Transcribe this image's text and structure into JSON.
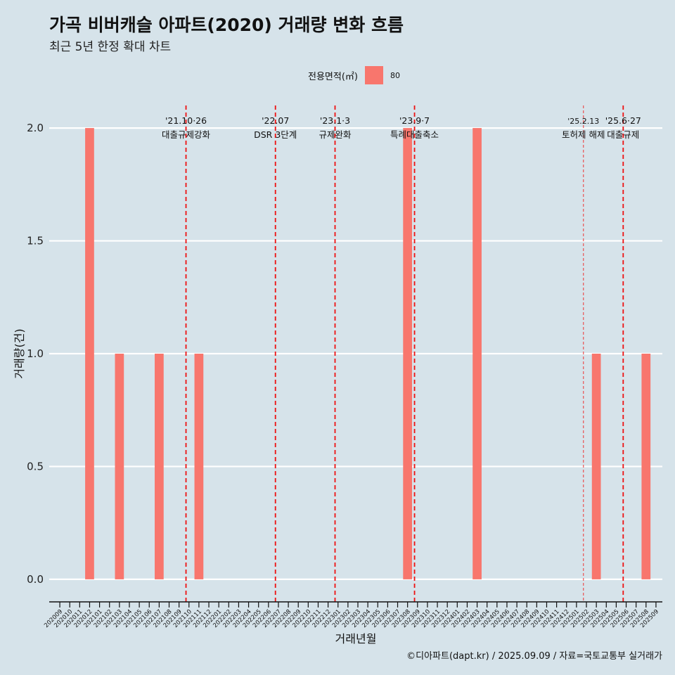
{
  "header": {
    "title": "가곡 비버캐슬 아파트(2020) 거래량 변화 흐름",
    "subtitle": "최근 5년 한정 확대 차트"
  },
  "legend": {
    "title": "전용면적(㎡)",
    "items": [
      {
        "label": "80",
        "color": "#f8766d"
      }
    ]
  },
  "caption": "©디아파트(dapt.kr) / 2025.09.09 / 자료=국토교통부 실거래가",
  "chart_data": {
    "type": "bar",
    "xlabel": "거래년월",
    "ylabel": "거래량(건)",
    "ylim": [
      -0.1,
      2.1
    ],
    "yticks": [
      0.0,
      0.5,
      1.0,
      1.5,
      2.0
    ],
    "ytick_labels": [
      "0.0",
      "0.5",
      "1.0",
      "1.5",
      "2.0"
    ],
    "categories": [
      "202009",
      "202010",
      "202011",
      "202012",
      "202101",
      "202102",
      "202103",
      "202104",
      "202105",
      "202106",
      "202107",
      "202108",
      "202109",
      "202110",
      "202111",
      "202112",
      "202201",
      "202202",
      "202203",
      "202204",
      "202205",
      "202206",
      "202207",
      "202208",
      "202209",
      "202210",
      "202211",
      "202212",
      "202301",
      "202302",
      "202303",
      "202304",
      "202305",
      "202306",
      "202307",
      "202308",
      "202309",
      "202310",
      "202311",
      "202312",
      "202401",
      "202402",
      "202403",
      "202404",
      "202405",
      "202406",
      "202407",
      "202408",
      "202409",
      "202410",
      "202411",
      "202412",
      "202501",
      "202502",
      "202503",
      "202504",
      "202505",
      "202506",
      "202507",
      "202508",
      "202509"
    ],
    "series": [
      {
        "name": "80",
        "color": "#f8766d",
        "values": [
          0,
          0,
          0,
          2,
          0,
          0,
          1,
          0,
          0,
          0,
          1,
          0,
          0,
          0,
          1,
          0,
          0,
          0,
          0,
          0,
          0,
          0,
          0,
          0,
          0,
          0,
          0,
          0,
          0,
          0,
          0,
          0,
          0,
          0,
          0,
          2,
          0,
          0,
          0,
          0,
          0,
          0,
          2,
          0,
          0,
          0,
          0,
          0,
          0,
          0,
          0,
          0,
          0,
          0,
          1,
          0,
          0,
          0,
          0,
          1,
          0
        ]
      }
    ],
    "annotations": [
      {
        "position": 13.2,
        "date": "'21.10·26",
        "label": "대출규제강화",
        "style": "bold"
      },
      {
        "position": 22.2,
        "date": "'22.07",
        "label": "DSR 3단계",
        "style": "bold"
      },
      {
        "position": 28.2,
        "date": "'23.1·3",
        "label": "규제완화",
        "style": "bold"
      },
      {
        "position": 36.2,
        "date": "'23.9·7",
        "label": "특례대출축소",
        "style": "bold"
      },
      {
        "position": 53.2,
        "date": "'25.2.13",
        "label": "토허제 해제",
        "style": "thin"
      },
      {
        "position": 57.2,
        "date": "'25.6·27",
        "label": "대출규제",
        "style": "bold"
      }
    ],
    "grid": true,
    "legend_position": "top"
  }
}
